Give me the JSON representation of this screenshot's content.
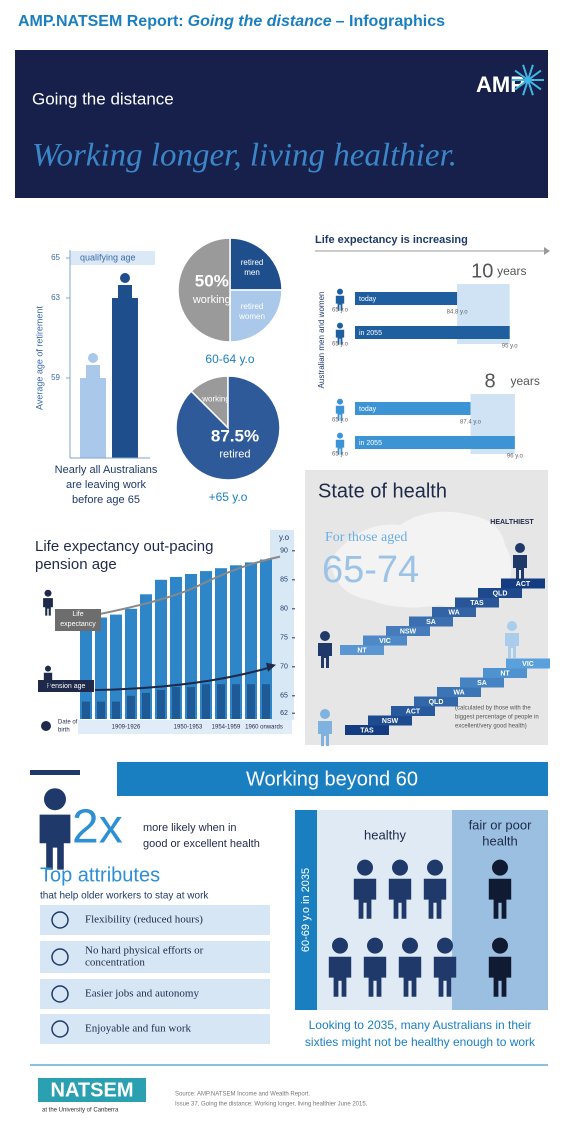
{
  "header": {
    "title_prefix": "AMP.NATSEM Report:",
    "title_italic": "Going the distance",
    "title_suffix": "– Infographics"
  },
  "banner": {
    "heading": "Going the distance",
    "tagline": "Working longer, living healthier.",
    "logo": "AMP"
  },
  "retirement": {
    "qualifying_label": "qualifying age",
    "axis_label": "Average age of retirement",
    "ylim": [
      55,
      65
    ],
    "yticks": [
      59,
      63,
      65
    ],
    "values": [
      59,
      63
    ],
    "colors": [
      "#a9c8ea",
      "#1f4e8c"
    ],
    "caption": [
      "Nearly all Australians",
      "are leaving work",
      "before age 65"
    ]
  },
  "pie_working": {
    "caption": "60-64 y.o",
    "slices": [
      {
        "label": [
          "retired",
          "men"
        ],
        "value": 25,
        "color": "#1f4e8c"
      },
      {
        "label": [
          "retired",
          "women"
        ],
        "value": 25,
        "color": "#a9c8ea"
      },
      {
        "label": [
          "working"
        ],
        "value": 50,
        "value_label": "50%",
        "color": "#9a9a9a"
      }
    ]
  },
  "pie_retired": {
    "caption": "+65 y.o",
    "slices": [
      {
        "label": [
          "working"
        ],
        "value": 12.5,
        "color": "#9a9a9a"
      },
      {
        "label": [
          "retired"
        ],
        "value": 87.5,
        "value_label": "87.5%",
        "color": "#2f5a9a"
      }
    ]
  },
  "life_expectancy": {
    "title": "Life expectancy is increasing",
    "axis_label": "Australian men and women",
    "start_label": "65 y.o",
    "xlim": [
      65,
      97
    ],
    "groups": [
      {
        "color": "#1f5fa0",
        "today_label": "today",
        "today": 84.8,
        "today_value_label": "84.8 y.o",
        "future_label": "in 2055",
        "future": 95,
        "future_value_label": "95 y.o",
        "gain": 10,
        "gain_unit": "years"
      },
      {
        "color": "#3d94d4",
        "today_label": "today",
        "today": 87.4,
        "today_value_label": "87.4 y.o",
        "future_label": "in 2055",
        "future": 96,
        "future_value_label": "96 y.o",
        "gain": 8,
        "gain_unit": "years"
      }
    ]
  },
  "state_of_health": {
    "title": "State of health",
    "subtitle": "For those aged",
    "age": "65-74",
    "healthiest": "HEALTHIEST",
    "men": [
      "NT",
      "VIC",
      "NSW",
      "SA",
      "WA",
      "TAS",
      "QLD",
      "ACT"
    ],
    "women": [
      "TAS",
      "NSW",
      "ACT",
      "QLD",
      "WA",
      "SA",
      "NT",
      "VIC"
    ],
    "note": [
      "(calculated by those with the",
      "biggest percentage of people in",
      "excellent/very good health)"
    ]
  },
  "pension": {
    "title": [
      "Life expectancy out-pacing",
      "pension age"
    ],
    "unit": "y.o",
    "life_label": [
      "Life",
      "expectancy"
    ],
    "pension_label": "Pension age",
    "dob_label": [
      "Date of",
      "birth"
    ],
    "groups": [
      "1909-1926",
      "1950-1953",
      "1954-1959",
      "1960 onwards"
    ],
    "ylim": [
      61,
      91
    ],
    "yticks": [
      62,
      65,
      70,
      75,
      80,
      85,
      90
    ],
    "life_expectancy": [
      78,
      78.5,
      79,
      80,
      82.5,
      85,
      85.5,
      86,
      86.5,
      87,
      87.5,
      88,
      88.5
    ],
    "pension_age": [
      64,
      64,
      64,
      65,
      65.5,
      66,
      66.5,
      66.5,
      67,
      67,
      67,
      67,
      67
    ]
  },
  "working": {
    "banner": "Working beyond 60",
    "multiplier": "2x",
    "likelihood": [
      "more likely when in",
      "good or excellent health"
    ],
    "attributes_title": "Top attributes",
    "attributes_subtitle": "that help older workers to stay at work",
    "attributes": [
      [
        "Flexibility (reduced hours)"
      ],
      [
        "No hard physical efforts or",
        "concentration"
      ],
      [
        "Easier jobs and autonomy"
      ],
      [
        "Enjoyable and fun work"
      ]
    ],
    "healthy": "healthy",
    "unhealthy": [
      "fair or poor",
      "health"
    ],
    "row_label": "60-69 y.o in 2035",
    "men": {
      "healthy": 3,
      "unhealthy": 1
    },
    "women": {
      "healthy": 4,
      "unhealthy": 1
    },
    "conclusion": [
      "Looking to 2035, many Australians in their",
      "sixties might not be healthy enough to work"
    ]
  },
  "footer": {
    "logo": "NATSEM",
    "logo_sub": "at the University of Canberra",
    "source": [
      "Source: AMP.NATSEM Income and Wealth Report.",
      "Issue 37, Going the distance: Working longer, living healthier June 2015."
    ]
  }
}
